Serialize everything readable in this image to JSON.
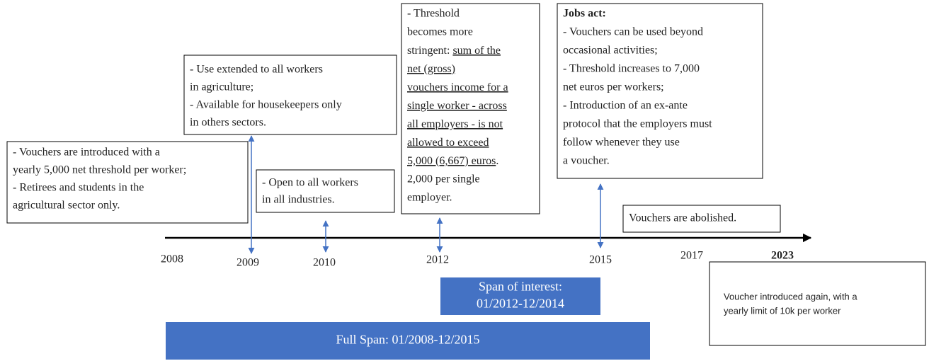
{
  "boxes": [
    {
      "lines": [
        "- Vouchers are introduced with a",
        "yearly 5,000 net threshold per worker;",
        "- Retirees and students in the",
        "agricultural sector only."
      ]
    },
    {
      "lines": [
        "- Use extended to all workers",
        "in agriculture;",
        "- Available for housekeepers only",
        "in others sectors."
      ]
    },
    {
      "lines": [
        "- Open to all workers",
        "in all industries."
      ]
    },
    {
      "lines": [
        "- Threshold",
        "becomes more",
        [
          {
            "text": "stringent: "
          },
          {
            "text": "sum of the",
            "underline": true
          }
        ],
        [
          {
            "text": "net (gross)",
            "underline": true
          }
        ],
        [
          {
            "text": "vouchers income for a",
            "underline": true
          }
        ],
        [
          {
            "text": "single worker - across",
            "underline": true
          }
        ],
        [
          {
            "text": "all employers - is not",
            "underline": true
          }
        ],
        [
          {
            "text": "allowed to exceed",
            "underline": true
          }
        ],
        [
          {
            "text": "5,000 (6,667) euros",
            "underline": true
          },
          {
            "text": "."
          }
        ],
        "2,000 per single",
        "employer."
      ]
    },
    {
      "heading": "Jobs act:",
      "lines": [
        "- Vouchers can be used beyond",
        "occasional activities;",
        "- Threshold increases to 7,000",
        "net euros per workers;",
        "- Introduction of an ex-ante",
        "protocol that the employers must",
        "follow whenever they use",
        "a voucher."
      ]
    },
    {
      "lines": [
        "Vouchers are abolished."
      ]
    },
    {
      "lines": [
        "Voucher introduced again, with a",
        "yearly limit of 10k per worker"
      ]
    }
  ],
  "years": [
    "2008",
    "2009",
    "2010",
    "2012",
    "2015",
    "2017",
    "2023"
  ],
  "spans": [
    {
      "lines": [
        "Span of interest:",
        "01/2012-12/2014"
      ]
    },
    {
      "lines": [
        "Full Span: 01/2008-12/2015"
      ]
    }
  ]
}
